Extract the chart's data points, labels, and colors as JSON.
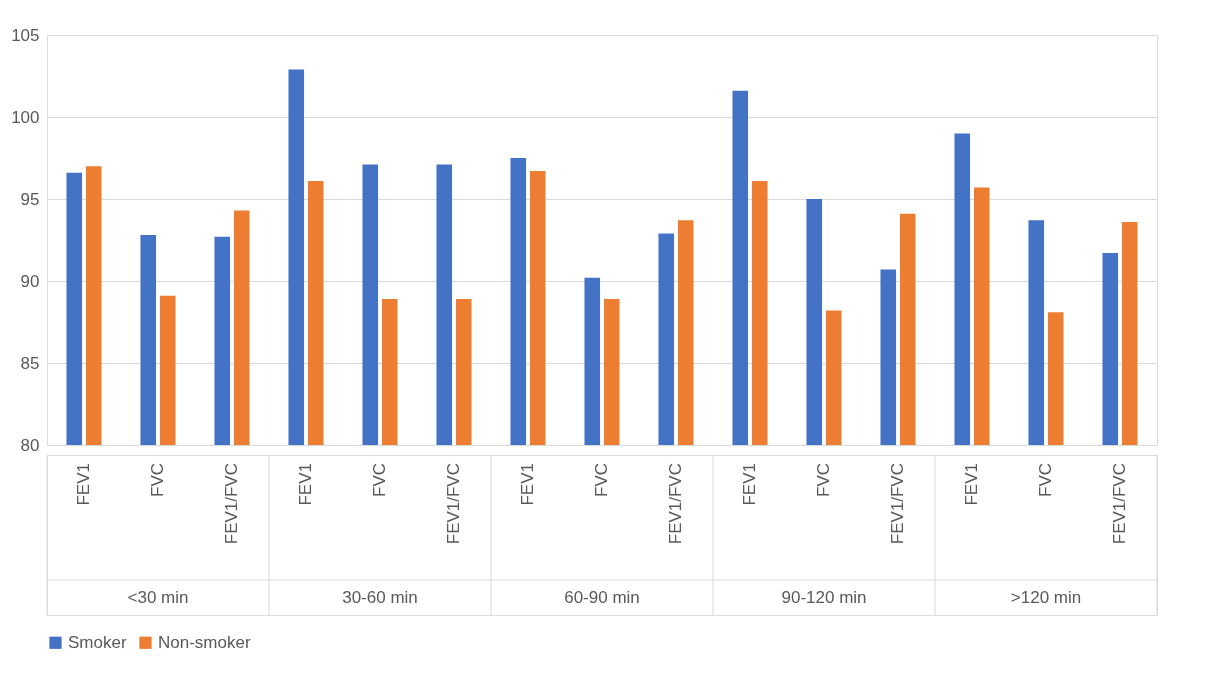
{
  "chart_data": {
    "type": "bar",
    "categories": [
      "FEV1",
      "FVC",
      "FEV1/FVC",
      "FEV1",
      "FVC",
      "FEV1/FVC",
      "FEV1",
      "FVC",
      "FEV1/FVC",
      "FEV1",
      "FVC",
      "FEV1/FVC",
      "FEV1",
      "FVC",
      "FEV1/FVC"
    ],
    "annotations": [
      "<30 min",
      "30-60 min",
      "60-90 min",
      "90-120 min",
      ">120 min"
    ],
    "series": [
      {
        "name": "Smoker",
        "color": "#4472c4",
        "values": [
          96.6,
          92.8,
          92.7,
          102.9,
          97.1,
          97.1,
          97.5,
          90.2,
          92.9,
          101.6,
          95.0,
          90.7,
          99.0,
          93.7,
          91.7
        ]
      },
      {
        "name": "Non-smoker",
        "color": "#ed7d31",
        "values": [
          97.0,
          89.1,
          94.3,
          96.1,
          88.9,
          88.9,
          96.7,
          88.9,
          93.7,
          96.1,
          88.2,
          94.1,
          95.7,
          88.1,
          93.6
        ]
      }
    ],
    "ylim": [
      80,
      105
    ],
    "yticks": [
      80,
      85,
      90,
      95,
      100,
      105
    ],
    "grid": "y",
    "legend": "bottom"
  }
}
